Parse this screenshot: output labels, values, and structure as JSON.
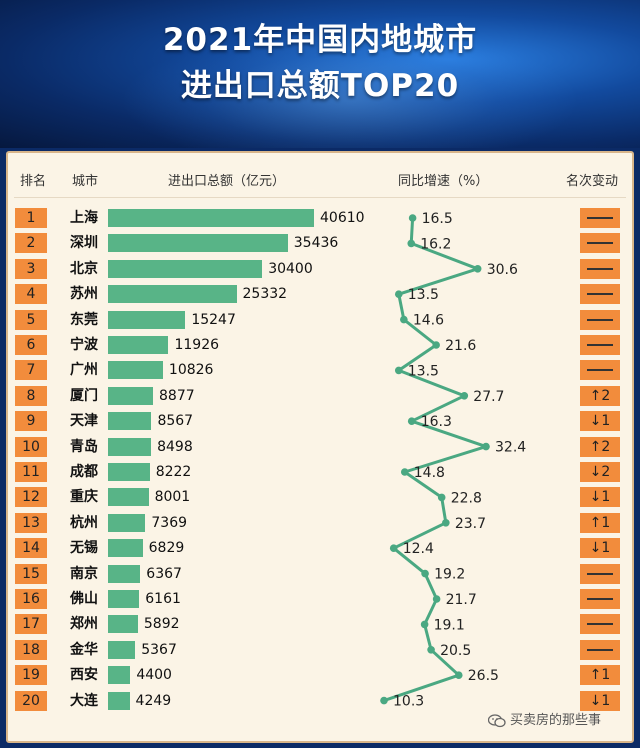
{
  "header": {
    "title_line1": "2021年中国内地城市",
    "title_line2": "进出口总额TOP20"
  },
  "columns": {
    "rank": "排名",
    "city": "城市",
    "amount": "进出口总额（亿元）",
    "growth": "同比增速（%）",
    "change": "名次变动"
  },
  "colors": {
    "rank_badge": "#f28c3c",
    "bar": "#58b487",
    "line": "#4aa882",
    "panel": "#fbf4e6"
  },
  "chart_data": {
    "type": "bar",
    "categories": [
      "上海",
      "深圳",
      "北京",
      "苏州",
      "东莞",
      "宁波",
      "广州",
      "厦门",
      "天津",
      "青岛",
      "成都",
      "重庆",
      "杭州",
      "无锡",
      "南京",
      "佛山",
      "郑州",
      "金华",
      "西安",
      "大连"
    ],
    "ranks": [
      "1",
      "2",
      "3",
      "4",
      "5",
      "6",
      "7",
      "8",
      "9",
      "10",
      "11",
      "12",
      "13",
      "14",
      "15",
      "16",
      "17",
      "18",
      "19",
      "20"
    ],
    "values": [
      40610,
      35436,
      30400,
      25332,
      15247,
      11926,
      10826,
      8877,
      8567,
      8498,
      8222,
      8001,
      7369,
      6829,
      6367,
      6161,
      5892,
      5367,
      4400,
      4249
    ],
    "growth": [
      16.5,
      16.2,
      30.6,
      13.5,
      14.6,
      21.6,
      13.5,
      27.7,
      16.3,
      32.4,
      14.8,
      22.8,
      23.7,
      12.4,
      19.2,
      21.7,
      19.1,
      20.5,
      26.5,
      10.3
    ],
    "rank_change": [
      "—",
      "—",
      "—",
      "—",
      "—",
      "—",
      "—",
      "↑2",
      "↓1",
      "↑2",
      "↓2",
      "↓1",
      "↑1",
      "↓1",
      "—",
      "—",
      "—",
      "—",
      "↑1",
      "↓1"
    ]
  },
  "watermark": {
    "text": "买卖房的那些事",
    "icon": "wechat-icon"
  }
}
